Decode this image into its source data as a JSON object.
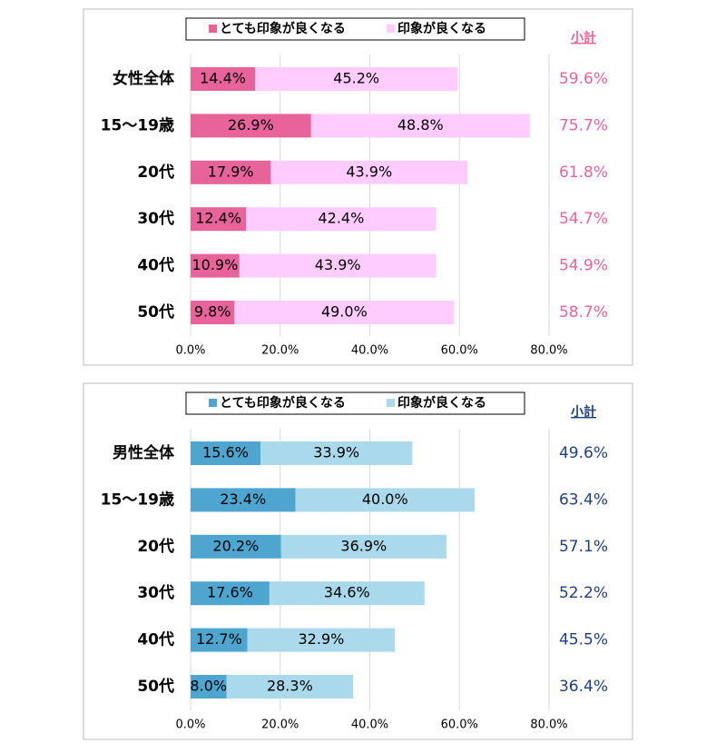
{
  "chart_data": [
    {
      "type": "bar",
      "orientation": "horizontal",
      "stacked": true,
      "grid": true,
      "categories": [
        "女性全体",
        "15～19歳",
        "20代",
        "30代",
        "40代",
        "50代"
      ],
      "series": [
        {
          "name": "とても印象が良くなる",
          "color": "#e8639a",
          "values": [
            14.4,
            26.9,
            17.9,
            12.4,
            10.9,
            9.8
          ],
          "value_labels": [
            "14.4%",
            "26.9%",
            "17.9%",
            "12.4%",
            "10.9%",
            "9.8%"
          ]
        },
        {
          "name": "印象が良くなる",
          "color": "#ffccff",
          "values": [
            45.2,
            48.8,
            43.9,
            42.4,
            43.9,
            49.0
          ],
          "value_labels": [
            "45.2%",
            "48.8%",
            "43.9%",
            "42.4%",
            "43.9%",
            "49.0%"
          ]
        }
      ],
      "totals": {
        "label": "小計",
        "color": "#e8639a",
        "values": [
          59.6,
          75.7,
          61.8,
          54.7,
          54.9,
          58.7
        ],
        "value_labels": [
          "59.6%",
          "75.7%",
          "61.8%",
          "54.7%",
          "54.9%",
          "58.7%"
        ]
      },
      "xlim": [
        0,
        80
      ],
      "xticks": [
        {
          "value": 0,
          "label": "0.0%"
        },
        {
          "value": 20,
          "label": "20.0%"
        },
        {
          "value": 40,
          "label": "40.0%"
        },
        {
          "value": 60,
          "label": "60.0%"
        },
        {
          "value": 80,
          "label": "80.0%"
        }
      ]
    },
    {
      "type": "bar",
      "orientation": "horizontal",
      "stacked": true,
      "grid": true,
      "categories": [
        "男性全体",
        "15～19歳",
        "20代",
        "30代",
        "40代",
        "50代"
      ],
      "series": [
        {
          "name": "とても印象が良くなる",
          "color": "#4ea6d0",
          "values": [
            15.6,
            23.4,
            20.2,
            17.6,
            12.7,
            8.0
          ],
          "value_labels": [
            "15.6%",
            "23.4%",
            "20.2%",
            "17.6%",
            "12.7%",
            "8.0%"
          ]
        },
        {
          "name": "印象が良くなる",
          "color": "#a9d9ea",
          "values": [
            33.9,
            40.0,
            36.9,
            34.6,
            32.9,
            28.3
          ],
          "value_labels": [
            "33.9%",
            "40.0%",
            "36.9%",
            "34.6%",
            "32.9%",
            "28.3%"
          ]
        }
      ],
      "totals": {
        "label": "小計",
        "color": "#1f3f80",
        "values": [
          49.6,
          63.4,
          57.1,
          52.2,
          45.5,
          36.4
        ],
        "value_labels": [
          "49.6%",
          "63.4%",
          "57.1%",
          "52.2%",
          "45.5%",
          "36.4%"
        ]
      },
      "xlim": [
        0,
        80
      ],
      "xticks": [
        {
          "value": 0,
          "label": "0.0%"
        },
        {
          "value": 20,
          "label": "20.0%"
        },
        {
          "value": 40,
          "label": "40.0%"
        },
        {
          "value": 60,
          "label": "60.0%"
        },
        {
          "value": 80,
          "label": "80.0%"
        }
      ]
    }
  ]
}
